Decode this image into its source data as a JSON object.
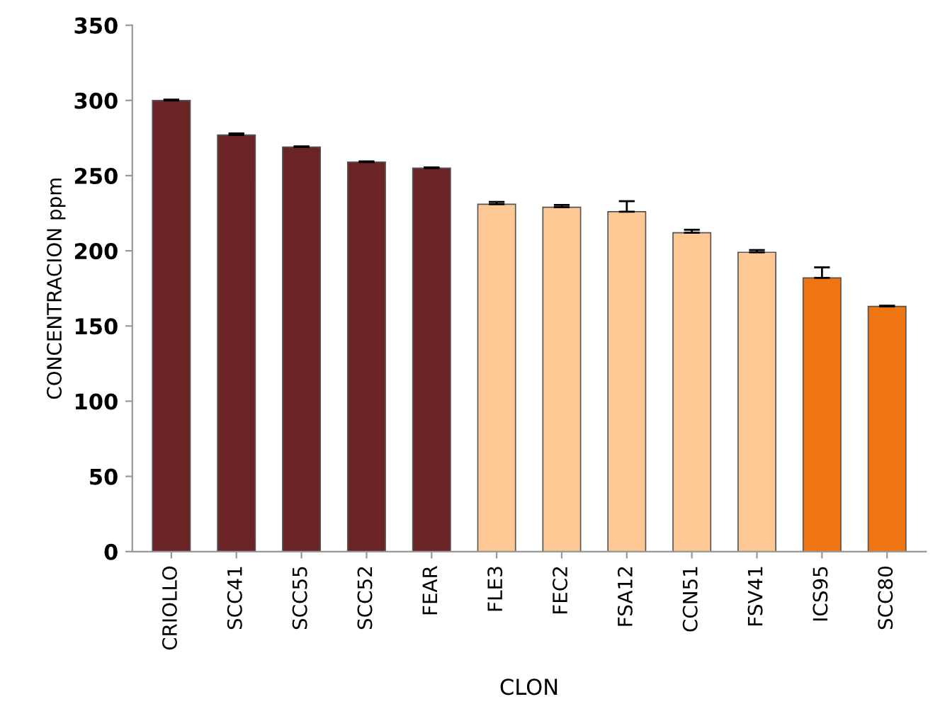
{
  "chart_data": {
    "type": "bar",
    "xlabel": "CLON",
    "ylabel": "CONCENTRACION ppm",
    "categories": [
      "CRIOLLO",
      "SCC41",
      "SCC55",
      "SCC52",
      "FEAR",
      "FLE3",
      "FEC2",
      "FSA12",
      "CCN51",
      "FSV41",
      "ICS95",
      "SCC80"
    ],
    "values": [
      300,
      277,
      269,
      259,
      255,
      231,
      229,
      226,
      212,
      199,
      182,
      163
    ],
    "errors": [
      0.5,
      1,
      0.5,
      0.5,
      0.5,
      1.5,
      1.5,
      7,
      2,
      1.5,
      7,
      0.5
    ],
    "colors": [
      "#6b2426",
      "#6b2426",
      "#6b2426",
      "#6b2426",
      "#6b2426",
      "#fdc894",
      "#fdc894",
      "#fdc894",
      "#fdc894",
      "#fdc894",
      "#ef7412",
      "#ef7412"
    ],
    "ylim": [
      0,
      350
    ],
    "yticks": [
      0,
      50,
      100,
      150,
      200,
      250,
      300,
      350
    ],
    "grid": false,
    "legend": false
  }
}
